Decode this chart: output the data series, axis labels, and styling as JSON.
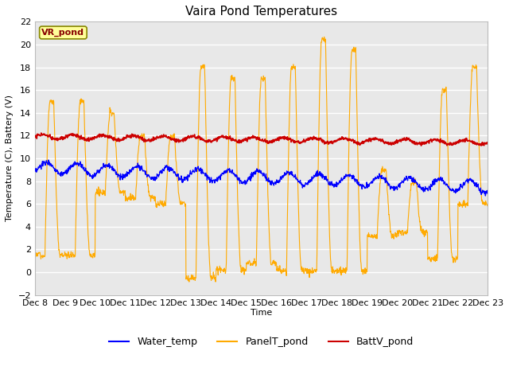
{
  "title": "Vaira Pond Temperatures",
  "xlabel": "Time",
  "ylabel": "Temperature (C), Battery (V)",
  "ylim": [
    -2,
    22
  ],
  "xlim": [
    0,
    360
  ],
  "bg_color": "#e8e8e8",
  "grid_color": "#ffffff",
  "water_color": "#0000ff",
  "panel_color": "#ffaa00",
  "batt_color": "#cc0000",
  "xtick_labels": [
    "Dec 8",
    "Dec 9",
    "Dec 10",
    "Dec 11",
    "Dec 12",
    "Dec 13",
    "Dec 14",
    "Dec 15",
    "Dec 16",
    "Dec 17",
    "Dec 18",
    "Dec 19",
    "Dec 20",
    "Dec 21",
    "Dec 22",
    "Dec 23"
  ],
  "xtick_positions": [
    0,
    24,
    48,
    72,
    96,
    120,
    144,
    168,
    192,
    216,
    240,
    264,
    288,
    312,
    336,
    360
  ],
  "ytick_positions": [
    -2,
    0,
    2,
    4,
    6,
    8,
    10,
    12,
    14,
    16,
    18,
    20,
    22
  ],
  "legend_label": "VR_pond",
  "legend_bbox_facecolor": "#ffff99",
  "legend_bbox_edgecolor": "#888800",
  "series_labels": [
    "Water_temp",
    "PanelT_pond",
    "BattV_pond"
  ]
}
